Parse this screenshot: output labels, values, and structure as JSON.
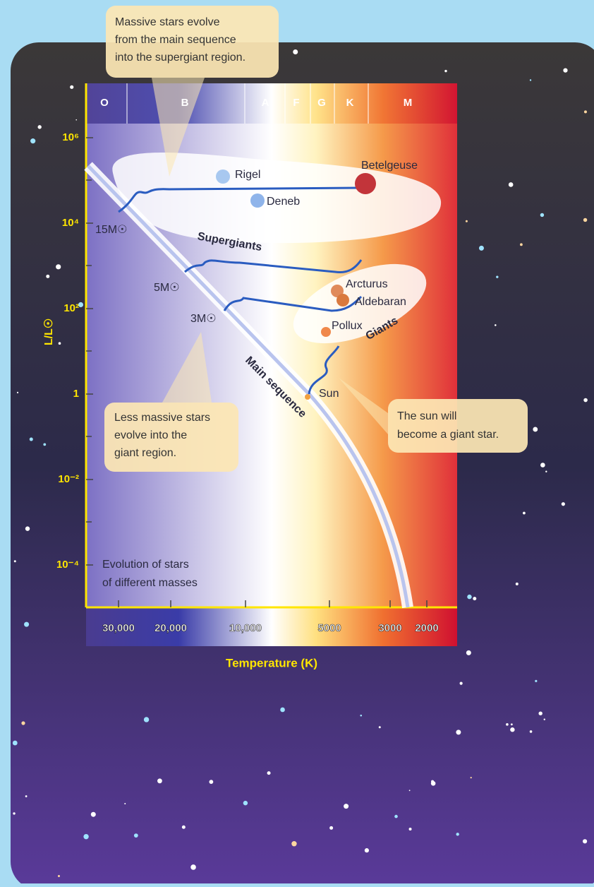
{
  "callouts": [
    [
      "Massive stars evolve",
      "from the main sequence",
      "into the supergiant region."
    ],
    [
      "Less massive stars",
      "evolve into the",
      "giant region."
    ],
    [
      "The sun will",
      "become a giant star."
    ]
  ],
  "spectral_classes": [
    "O",
    "B",
    "A",
    "F",
    "G",
    "K",
    "M"
  ],
  "y_axis": {
    "label": "L/L☉",
    "ticks": [
      "10⁶",
      "10⁴",
      "10²",
      "1",
      "10⁻²",
      "10⁻⁴"
    ]
  },
  "x_axis": {
    "label": "Temperature (K)",
    "ticks": [
      "30,000",
      "20,000",
      "10,000",
      "5000",
      "3000",
      "2000"
    ]
  },
  "stars": [
    "Rigel",
    "Deneb",
    "Betelgeuse",
    "Arcturus",
    "Aldebaran",
    "Pollux",
    "Sun"
  ],
  "regions": [
    "Supergiants",
    "Giants",
    "Main sequence"
  ],
  "tracks": [
    "15M☉",
    "5M☉",
    "3M☉"
  ],
  "note": [
    "Evolution of stars",
    "of different masses"
  ]
}
